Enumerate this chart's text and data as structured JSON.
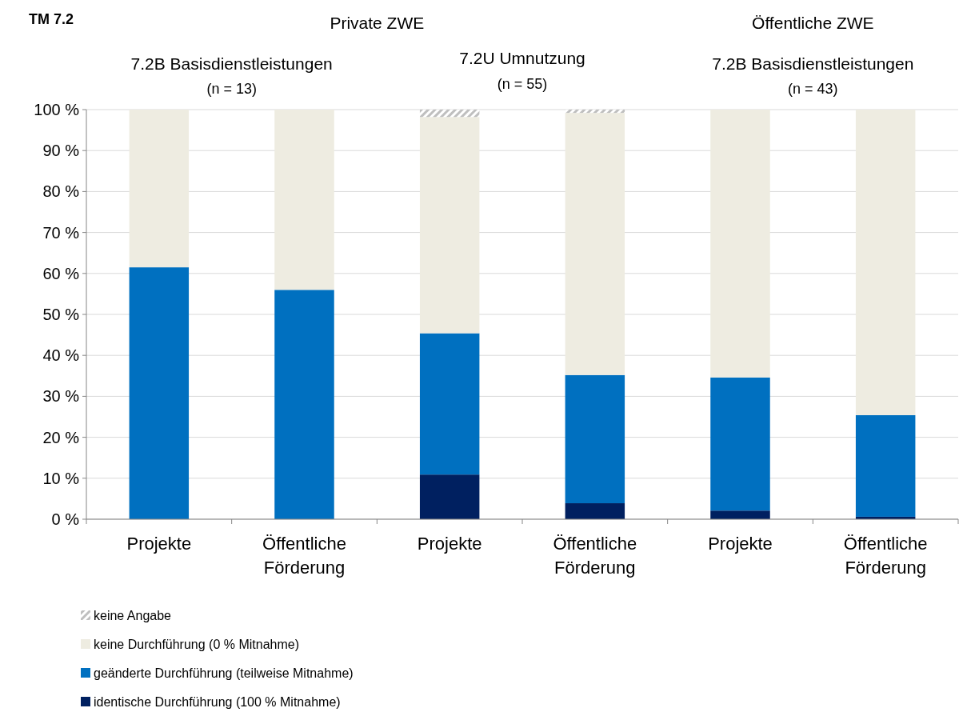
{
  "chart_data": {
    "type": "bar",
    "title": "TM 7.2",
    "stacked": true,
    "grid": "y",
    "legend": "bottom",
    "categories": [
      "Projekte",
      "Öffentliche Förderung",
      "Projekte",
      "Öffentliche Förderung",
      "Projekte",
      "Öffentliche Förderung"
    ],
    "series": [
      {
        "name": "identische Durchführung (100 % Mitnahme)",
        "color": "#002060",
        "values": [
          0,
          0,
          10.9,
          3.9,
          2.1,
          0.6
        ]
      },
      {
        "name": "geänderte Durchführung (teilweise Mitnahme)",
        "color": "#0070c0",
        "values": [
          61.5,
          56,
          34.5,
          31.3,
          32.5,
          24.8
        ]
      },
      {
        "name": "keine Durchführung (0 % Mitnahme)",
        "color": "#eeece1",
        "values": [
          38.5,
          44,
          52.8,
          64,
          65.4,
          74.6
        ]
      },
      {
        "name": "keine Angabe",
        "color": "#bfbfbf",
        "values": [
          0,
          0,
          1.8,
          0.8,
          0,
          0
        ]
      }
    ],
    "ylim": [
      0,
      100
    ],
    "yticks": [
      {
        "value": 0,
        "label": "0 %"
      },
      {
        "value": 10,
        "label": "10 %"
      },
      {
        "value": 20,
        "label": "20 %"
      },
      {
        "value": 30,
        "label": "30 %"
      },
      {
        "value": 40,
        "label": "40 %"
      },
      {
        "value": 50,
        "label": "50 %"
      },
      {
        "value": 60,
        "label": "60 %"
      },
      {
        "value": 70,
        "label": "70 %"
      },
      {
        "value": 80,
        "label": "80 %"
      },
      {
        "value": 90,
        "label": "90 %"
      },
      {
        "value": 100,
        "label": "100 %"
      }
    ],
    "annotations": [
      "Private ZWE",
      "Öffentliche ZWE",
      "7.2B Basisdienstleistungen",
      "(n = 13)",
      "7.2U Umnutzung",
      "(n = 55)",
      "7.2B Basisdienstleistungen",
      "(n = 43)"
    ]
  }
}
